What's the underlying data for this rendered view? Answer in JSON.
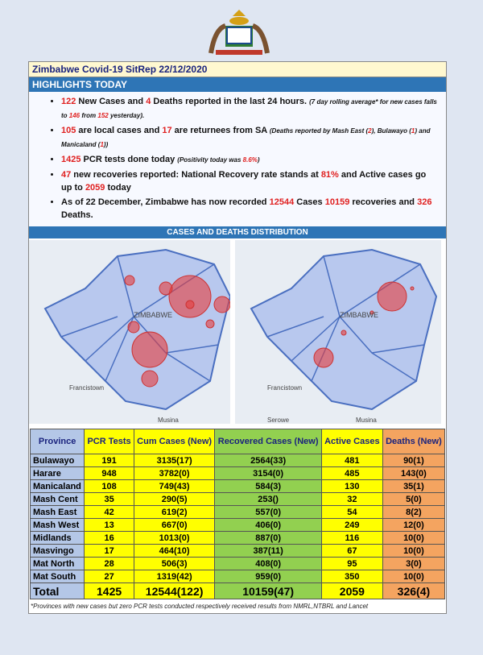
{
  "header": {
    "title": "Zimbabwe Covid-19 SitRep 22/12/2020"
  },
  "highlights": {
    "heading": "HIGHLIGHTS TODAY",
    "red": "#e02020",
    "bullets": [
      [
        {
          "text": "122",
          "red": true
        },
        {
          "text": " New Cases and "
        },
        {
          "text": "4",
          "red": true
        },
        {
          "text": " Deaths reported in the last 24 hours. "
        },
        {
          "text": "(7 day rolling average* for new cases falls to ",
          "italic": true
        },
        {
          "text": "146",
          "red": true,
          "italic": true
        },
        {
          "text": " from ",
          "italic": true
        },
        {
          "text": "152",
          "red": true,
          "italic": true
        },
        {
          "text": " yesterday).",
          "italic": true
        }
      ],
      [
        {
          "text": "105",
          "red": true
        },
        {
          "text": " are local cases and "
        },
        {
          "text": "17",
          "red": true
        },
        {
          "text": " are returnees from SA "
        },
        {
          "text": "(Deaths reported by Mash East (",
          "italic": true
        },
        {
          "text": "2",
          "red": true,
          "italic": true
        },
        {
          "text": "), Bulawayo (",
          "italic": true
        },
        {
          "text": "1",
          "red": true,
          "italic": true
        },
        {
          "text": ") and Manicaland (",
          "italic": true
        },
        {
          "text": "1",
          "red": true,
          "italic": true
        },
        {
          "text": "))",
          "italic": true
        }
      ],
      [
        {
          "text": "1425",
          "red": true
        },
        {
          "text": " PCR tests done today "
        },
        {
          "text": "(Positivity today was ",
          "italic": true
        },
        {
          "text": "8.6%",
          "red": true,
          "italic": true
        },
        {
          "text": ")",
          "italic": true
        }
      ],
      [
        {
          "text": "47",
          "red": true
        },
        {
          "text": " new recoveries reported: National Recovery rate stands at "
        },
        {
          "text": "81%",
          "red": true
        },
        {
          "text": " and Active cases go up to "
        },
        {
          "text": "2059",
          "red": true
        },
        {
          "text": " today"
        }
      ],
      [
        {
          "text": "As of 22 December, Zimbabwe has now recorded "
        },
        {
          "text": "12544",
          "red": true
        },
        {
          "text": "  Cases "
        },
        {
          "text": "10159",
          "red": true
        },
        {
          "text": " recoveries and "
        },
        {
          "text": "326",
          "red": true
        },
        {
          "text": " Deaths."
        }
      ]
    ]
  },
  "distribution": {
    "heading": "CASES AND DEATHS DISTRIBUTION",
    "maps": [
      {
        "labels": [
          "ZIMBABWE",
          "Francistown",
          "Musina"
        ]
      },
      {
        "labels": [
          "ZIMBABWE",
          "Francistown",
          "Musina",
          "Serowe"
        ]
      }
    ]
  },
  "table": {
    "headers": [
      "Province",
      "PCR Tests",
      "Cum Cases (New)",
      "Recovered Cases (New)",
      "Active Cases",
      "Deaths (New)"
    ],
    "colors": [
      "#b4c7e7",
      "#ffff00",
      "#ffff00",
      "#92d050",
      "#ffff00",
      "#f4a460"
    ],
    "rows": [
      [
        "Bulawayo",
        "191",
        "3135(17)",
        "2564(33)",
        "481",
        "90(1)"
      ],
      [
        "Harare",
        "948",
        "3782(0)",
        "3154(0)",
        "485",
        "143(0)"
      ],
      [
        "Manicaland",
        "108",
        "749(43)",
        "584(3)",
        "130",
        "35(1)"
      ],
      [
        "Mash Cent",
        "35",
        "290(5)",
        "253()",
        "32",
        "5(0)"
      ],
      [
        "Mash East",
        "42",
        "619(2)",
        "557(0)",
        "54",
        "8(2)"
      ],
      [
        "Mash West",
        "13",
        "667(0)",
        "406(0)",
        "249",
        "12(0)"
      ],
      [
        "Midlands",
        "16",
        "1013(0)",
        "887(0)",
        "116",
        "10(0)"
      ],
      [
        "Masvingo",
        "17",
        "464(10)",
        "387(11)",
        "67",
        "10(0)"
      ],
      [
        "Mat North",
        "28",
        "506(3)",
        "408(0)",
        "95",
        "3(0)"
      ],
      [
        "Mat South",
        "27",
        "1319(42)",
        "959(0)",
        "350",
        "10(0)"
      ]
    ],
    "total": [
      "Total",
      "1425",
      "12544(122)",
      "10159(47)",
      "2059",
      "326(4)"
    ],
    "footnote": "*Provinces  with new cases but zero  PCR tests conducted respectively received results from NMRL,NTBRL and Lancet"
  }
}
